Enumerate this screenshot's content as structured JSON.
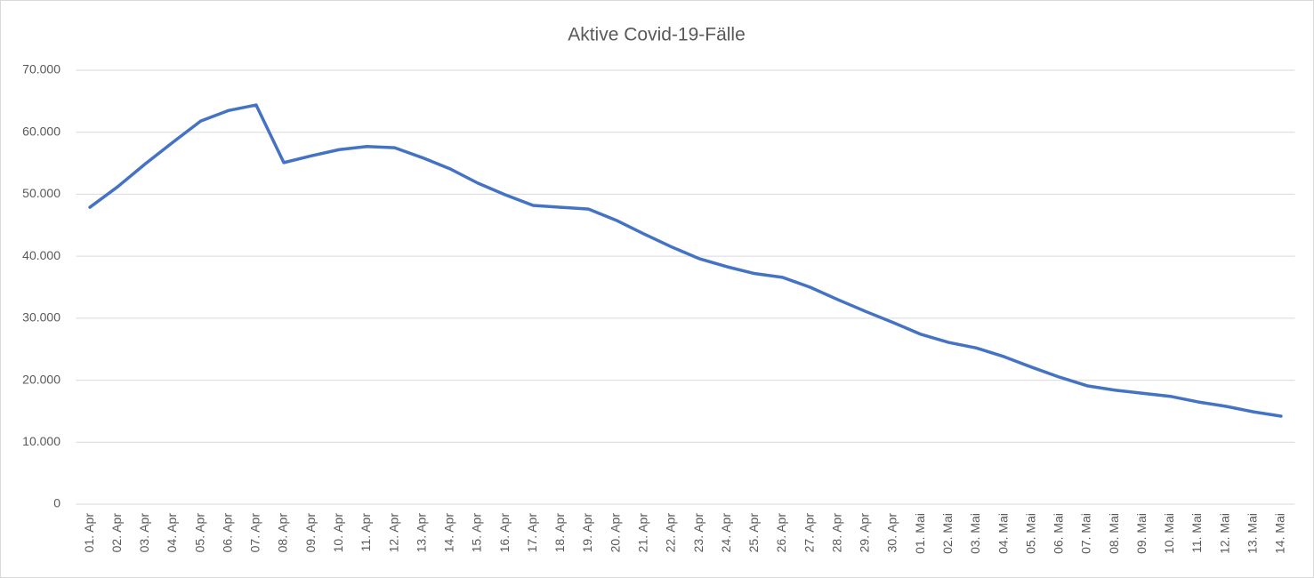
{
  "chart_data": {
    "type": "line",
    "title": "Aktive Covid-19-Fälle",
    "categories": [
      "01. Apr",
      "02. Apr",
      "03. Apr",
      "04. Apr",
      "05. Apr",
      "06. Apr",
      "07. Apr",
      "08. Apr",
      "09. Apr",
      "10. Apr",
      "11. Apr",
      "12. Apr",
      "13. Apr",
      "14. Apr",
      "15. Apr",
      "16. Apr",
      "17. Apr",
      "18. Apr",
      "19. Apr",
      "20. Apr",
      "21. Apr",
      "22. Apr",
      "23. Apr",
      "24. Apr",
      "25. Apr",
      "26. Apr",
      "27. Apr",
      "28. Apr",
      "29. Apr",
      "30. Apr",
      "01. Mai",
      "02. Mai",
      "03. Mai",
      "04. Mai",
      "05. Mai",
      "06. Mai",
      "07. Mai",
      "08. Mai",
      "09. Mai",
      "10. Mai",
      "11. Mai",
      "12. Mai",
      "13. Mai",
      "14. Mai"
    ],
    "series": [
      {
        "color": "#4472c4",
        "values": [
          47900,
          51200,
          54900,
          58400,
          61800,
          63500,
          64400,
          55100,
          56200,
          57200,
          57700,
          57500,
          55900,
          54100,
          51800,
          49900,
          48200,
          47900,
          47600,
          45800,
          43600,
          41500,
          39600,
          38300,
          37200,
          36600,
          35000,
          33000,
          31100,
          29300,
          27400,
          26100,
          25200,
          23800,
          22100,
          20500,
          19100,
          18400,
          17900,
          17400,
          16500,
          15800,
          14900,
          14200
        ]
      }
    ],
    "ylim": [
      0,
      70000
    ],
    "yticks": [
      0,
      {
        "value": 10000,
        "label": "10.000"
      },
      {
        "value": 20000,
        "label": "20.000"
      },
      {
        "value": 30000,
        "label": "30.000"
      },
      {
        "value": 40000,
        "label": "40.000"
      },
      {
        "value": 50000,
        "label": "50.000"
      },
      {
        "value": 60000,
        "label": "60.000"
      },
      {
        "value": 70000,
        "label": "70.000"
      }
    ],
    "grid": true
  }
}
